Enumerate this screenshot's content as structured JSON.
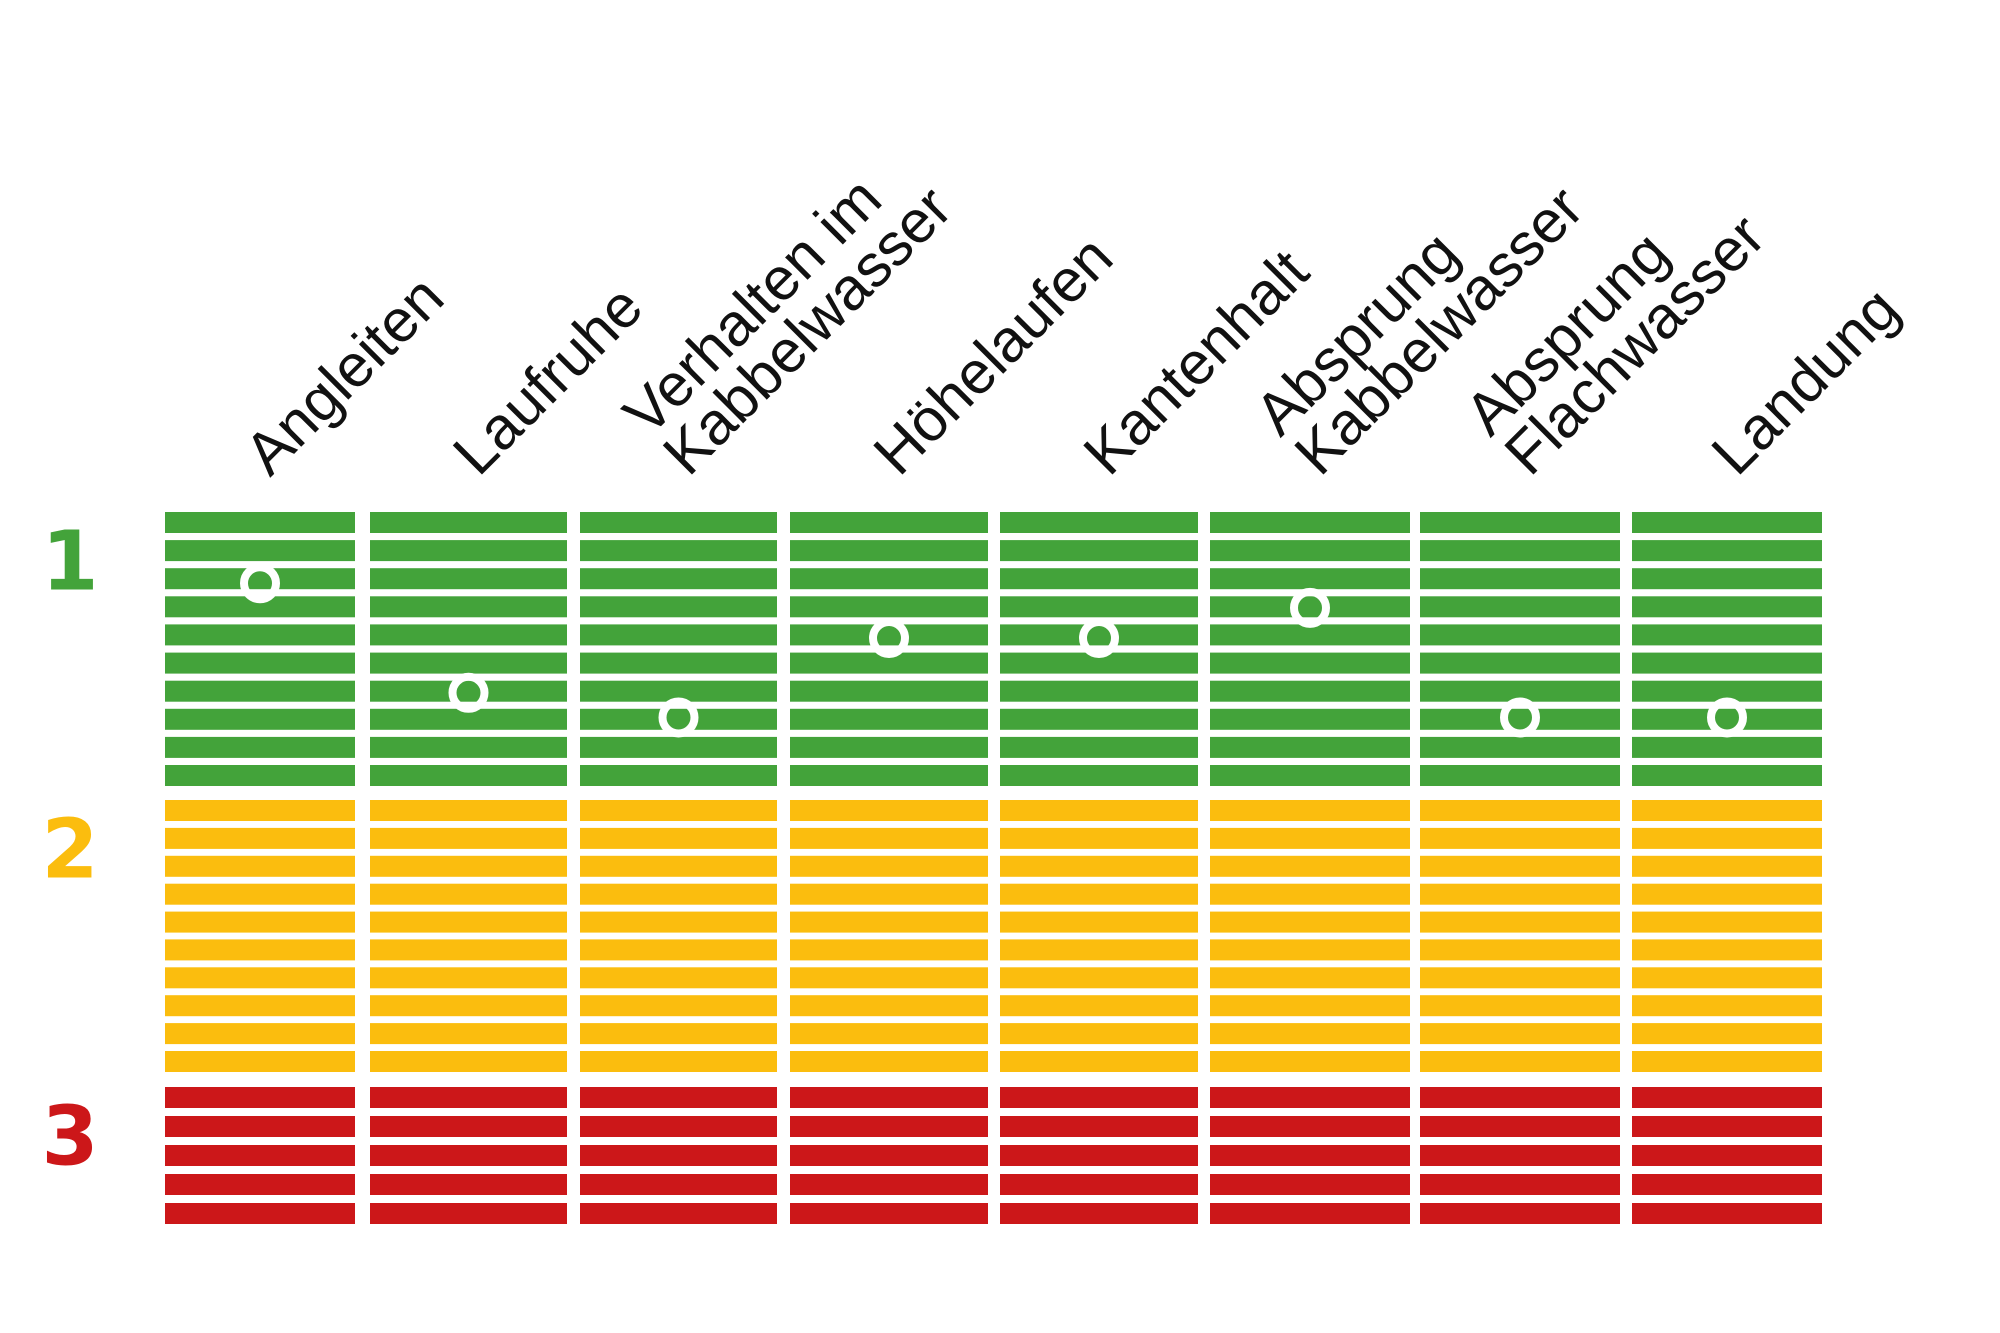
{
  "chart_data": {
    "type": "scatter",
    "categories": [
      [
        "Angleiten"
      ],
      [
        "Laufruhe"
      ],
      [
        "Verhalten im",
        "Kabbelwasser"
      ],
      [
        "Höhelaufen"
      ],
      [
        "Kantenhalt"
      ],
      [
        "Absprung",
        "Kabbelwasser"
      ],
      [
        "Absprung",
        "Flachwasser"
      ],
      [
        "Landung"
      ]
    ],
    "values": [
      1.26,
      1.66,
      1.75,
      1.46,
      1.46,
      1.35,
      1.75,
      1.75
    ],
    "ylim": [
      1,
      3.5
    ],
    "y_inverted": true,
    "zones": [
      {
        "label": "1",
        "from": 1.0,
        "to": 2.0,
        "stripes": 10,
        "color": "#43a33a"
      },
      {
        "label": "2",
        "from": 2.0,
        "to": 3.0,
        "stripes": 10,
        "color": "#fbbd0e"
      },
      {
        "label": "3",
        "from": 3.0,
        "to": 3.5,
        "stripes": 5,
        "color": "#cc1719"
      }
    ],
    "marker_color": "#ffffff",
    "grid": false,
    "legend": "none"
  }
}
